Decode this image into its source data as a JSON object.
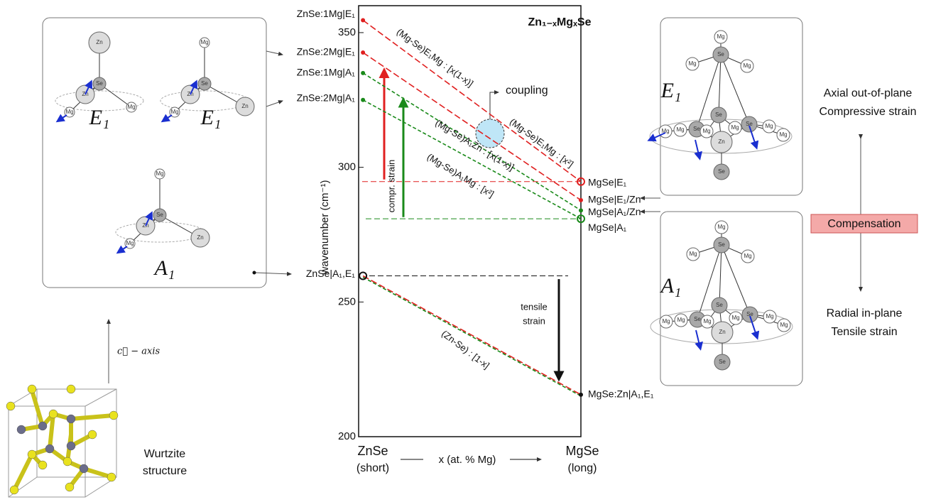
{
  "chart_data": {
    "type": "line",
    "title": "Zn₁₋ₓMgₓSe",
    "y_label": "wavenumber (cm⁻¹)",
    "x_label": "x (at. % Mg)",
    "x_start_label": [
      "ZnSe",
      "(short)"
    ],
    "x_end_label": [
      "MgSe",
      "(long)"
    ],
    "xlim": [
      -0.02,
      1
    ],
    "ylim": [
      200,
      360
    ],
    "yticks": [
      200,
      250,
      300,
      350
    ],
    "line_style": "dashed",
    "series": [
      {
        "color": "#e02020",
        "x": [
          0,
          1
        ],
        "values": [
          354.6,
          294.7
        ],
        "start_label": "ZnSe:1Mg|E₁",
        "end_label": "MgSe|E₁",
        "start_marker": "dot",
        "end_marker": "circle"
      },
      {
        "color": "#e02020",
        "x": [
          0,
          1
        ],
        "values": [
          342.6,
          287.8
        ],
        "start_label": "ZnSe:2Mg|E₁",
        "end_label": "MgSe|E₁/Zn",
        "start_marker": "dot",
        "end_marker": "dot"
      },
      {
        "color": "#1a8a1a",
        "x": [
          0,
          1
        ],
        "values": [
          335.0,
          284.0
        ],
        "start_label": "ZnSe:1Mg|A₁",
        "end_label": "MgSe|A₁/Zn",
        "start_marker": "dot",
        "end_marker": "dot"
      },
      {
        "color": "#1a8a1a",
        "x": [
          0,
          1
        ],
        "values": [
          325.0,
          280.9
        ],
        "start_label": "ZnSe:2Mg|A₁",
        "end_label": "MgSe|A₁",
        "start_marker": "dot",
        "end_marker": "circle"
      },
      {
        "color": "#1a8a1a",
        "x": [
          0,
          1
        ],
        "values": [
          259.2,
          215.1
        ],
        "start_marker": "none",
        "end_marker": "none"
      },
      {
        "color": "#e02020",
        "x": [
          0,
          1
        ],
        "values": [
          259.7,
          215.6
        ],
        "start_label": "ZnSe|A₁,E₁",
        "end_label": "MgSe:Zn|A₁,E₁",
        "start_marker": "circle",
        "end_marker": "dot",
        "marker_color": "#111111"
      }
    ],
    "reference_lines": [
      {
        "value": 294.7,
        "color": "#e02020"
      },
      {
        "value": 280.9,
        "color": "#1a8a1a"
      },
      {
        "value": 259.7,
        "color": "#111111"
      }
    ],
    "arrows": [
      {
        "from": 295.5,
        "to": 335.5,
        "color": "#e02020"
      },
      {
        "from": 281.5,
        "to": 324.5,
        "color": "#1a8a1a"
      },
      {
        "from": 258.5,
        "to": 222.0,
        "color": "#111111"
      }
    ],
    "annotations": [
      {
        "text": "(Mg-Se)E₁Mg : [x(1-x)]",
        "color": "#e02020"
      },
      {
        "text": "(Mg-Se)E₁Mg : [x²]",
        "color": "#e02020"
      },
      {
        "text": "(Mg-Se)A₁Zn : [x(1-x)]",
        "color": "#1a8a1a"
      },
      {
        "text": "(Mg-Se)A₁Mg : [x²]",
        "color": "#1a8a1a"
      },
      {
        "text": "(Zn-Se) : [1-x]",
        "color": "#111111"
      },
      {
        "text": "coupling",
        "color": "#111111"
      },
      {
        "text": "compr. strain",
        "color": "#111111"
      },
      {
        "text": "tensile",
        "color": "#111111"
      },
      {
        "text": "strain",
        "color": "#111111"
      }
    ]
  },
  "left_panel": {
    "molecules": [
      {
        "label": "E₁",
        "atoms": [
          "Zn",
          "Se",
          "Zn",
          "Mg",
          "Mg"
        ]
      },
      {
        "label": "E₁",
        "atoms": [
          "Mg",
          "Se",
          "Zn",
          "Mg",
          "Zn"
        ]
      },
      {
        "label": "A₁",
        "atoms": [
          "Mg",
          "Se",
          "Zn",
          "Mg",
          "Zn"
        ]
      }
    ]
  },
  "right_panel": {
    "molecules": [
      {
        "label": "E₁",
        "atoms": [
          "Mg",
          "Se",
          "Mg",
          "Mg",
          "Se",
          "Se",
          "Se",
          "Zn",
          "Se",
          "Mg",
          "Mg",
          "Mg",
          "Mg",
          "Mg",
          "Mg"
        ]
      },
      {
        "label": "A₁",
        "atoms": [
          "Mg",
          "Se",
          "Mg",
          "Mg",
          "Se",
          "Se",
          "Se",
          "Zn",
          "Se",
          "Mg",
          "Mg",
          "Mg",
          "Mg",
          "Mg",
          "Mg"
        ]
      }
    ],
    "top_text": [
      "Axial out-of-plane",
      "Compressive strain"
    ],
    "middle_text": "Compensation",
    "bottom_text": [
      "Radial in-plane",
      "Tensile strain"
    ]
  },
  "wurtzite": {
    "axis_label": "c⃗ − axis",
    "caption": [
      "Wurtzite",
      "structure"
    ]
  }
}
